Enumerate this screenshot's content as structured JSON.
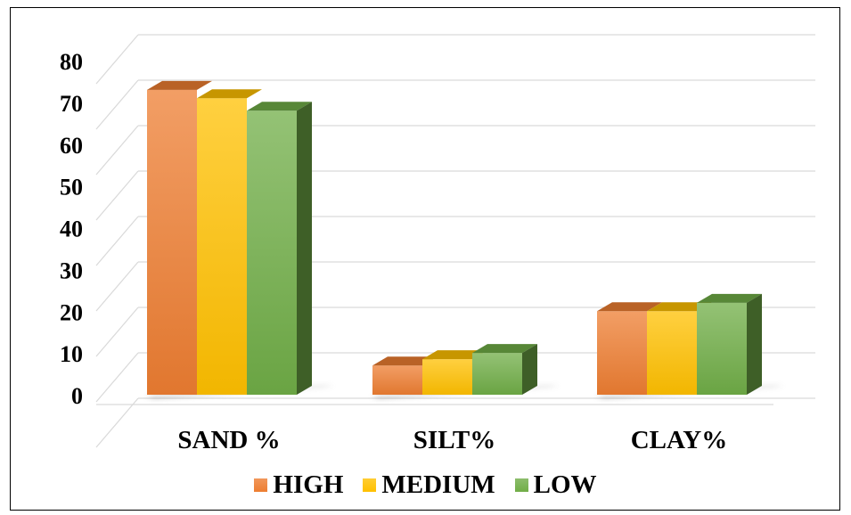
{
  "chart_data": {
    "type": "bar",
    "categories": [
      "SAND %",
      "SILT%",
      "CLAY%"
    ],
    "series": [
      {
        "name": "HIGH",
        "values": [
          73,
          7,
          20
        ],
        "color": "#ed7d31"
      },
      {
        "name": "MEDIUM",
        "values": [
          71,
          8.5,
          20
        ],
        "color": "#ffc000"
      },
      {
        "name": "LOW",
        "values": [
          68,
          10,
          22
        ],
        "color": "#70ad47"
      }
    ],
    "title": "",
    "xlabel": "",
    "ylabel": "",
    "ylim": [
      0,
      80
    ],
    "yticks": [
      0,
      10,
      20,
      30,
      40,
      50,
      60,
      70,
      80
    ],
    "grid": true,
    "legend_position": "bottom",
    "style": "3d-clustered-column"
  }
}
